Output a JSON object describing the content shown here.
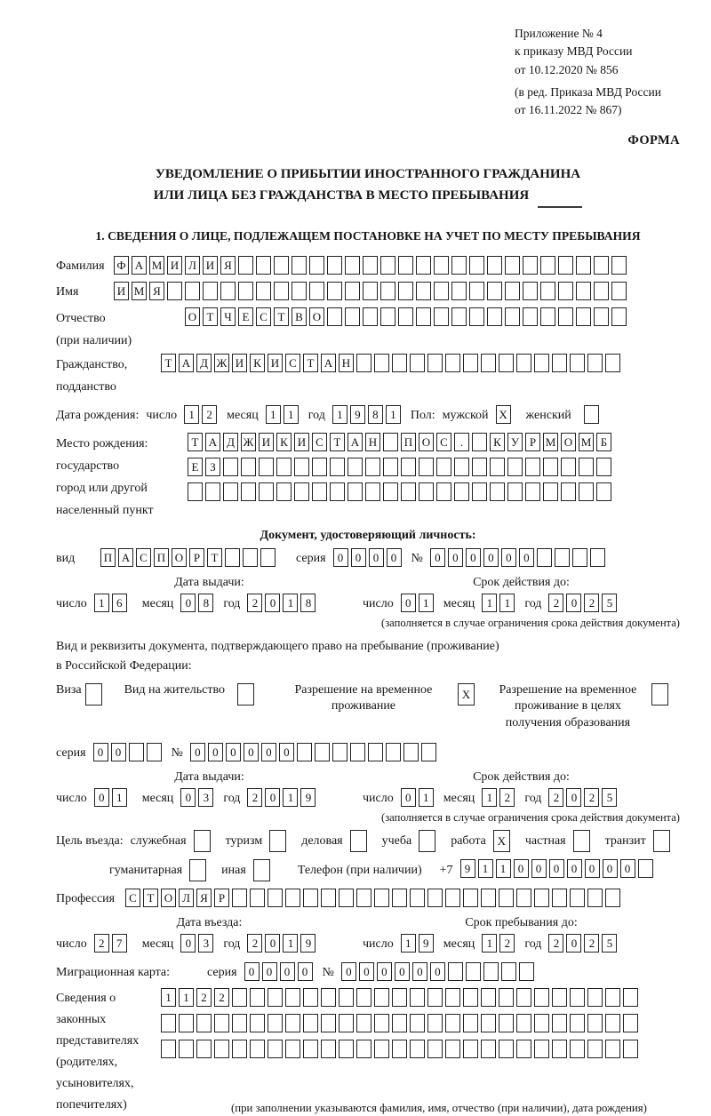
{
  "doc": {
    "annex": [
      "Приложение № 4",
      "к приказу МВД России",
      "от 10.12.2020 № 856"
    ],
    "annex_note": [
      "(в ред. Приказа МВД России",
      "от 16.11.2022 № 867)"
    ],
    "forma": "ФОРМА",
    "title1": "УВЕДОМЛЕНИЕ О ПРИБЫТИИ ИНОСТРАННОГО ГРАЖДАНИНА",
    "title2": "ИЛИ ЛИЦА БЕЗ ГРАЖДАНСТВА В МЕСТО ПРЕБЫВАНИЯ",
    "section1_title": "1. СВЕДЕНИЯ О ЛИЦЕ, ПОДЛЕЖАЩЕМ ПОСТАНОВКЕ НА УЧЕТ ПО МЕСТУ ПРЕБЫВАНИЯ"
  },
  "person": {
    "surname": {
      "label": "Фамилия",
      "boxes": {
        "value": "ФАМИЛИЯ",
        "count": 29
      }
    },
    "name": {
      "label": "Имя",
      "boxes": {
        "value": "ИМЯ",
        "count": 29
      }
    },
    "patronymic": {
      "label1": "Отчество",
      "label2": "(при наличии)",
      "boxes": {
        "value": "ОТЧЕСТВО",
        "count": 25
      }
    },
    "citizenship": {
      "label1": "Гражданство,",
      "label2": "подданство",
      "boxes": {
        "value": "ТАДЖИКИСТАН",
        "count": 26
      }
    },
    "birth": {
      "label": "Дата рождения:",
      "day_label": "число",
      "day": {
        "value": "12",
        "count": 2
      },
      "month_label": "месяц",
      "month": {
        "value": "11",
        "count": 2
      },
      "year_label": "год",
      "year": {
        "value": "1981",
        "count": 4
      },
      "sex_label": "Пол:",
      "male_label": "мужской",
      "male": {
        "value": "X",
        "count": 1
      },
      "female_label": "женский",
      "female": {
        "value": "",
        "count": 1
      }
    },
    "birthplace": {
      "label1": "Место рождения:",
      "label2": "государство",
      "label3": "город или другой",
      "label4": "населенный пункт",
      "row1": {
        "value": "ТАДЖИКИСТАН ПОС. КУРМОМБ",
        "count": 24
      },
      "row2": {
        "value": "ЕЗ",
        "count": 24
      },
      "row3": {
        "value": "",
        "count": 24
      }
    }
  },
  "identity_doc": {
    "heading": "Документ, удостоверяющий личность:",
    "kind_label": "вид",
    "kind": {
      "value": "ПАСПОРТ",
      "count": 10
    },
    "series_label": "серия",
    "series": {
      "value": "0000",
      "count": 4
    },
    "number_label": "№",
    "number": {
      "value": "000000",
      "count": 10
    },
    "issue": {
      "heading": "Дата выдачи:",
      "day_label": "число",
      "day": {
        "value": "16",
        "count": 2
      },
      "month_label": "месяц",
      "month": {
        "value": "08",
        "count": 2
      },
      "year_label": "год",
      "year": {
        "value": "2018",
        "count": 4
      }
    },
    "valid": {
      "heading": "Срок действия до:",
      "day_label": "число",
      "day": {
        "value": "01",
        "count": 2
      },
      "month_label": "месяц",
      "month": {
        "value": "11",
        "count": 2
      },
      "year_label": "год",
      "year": {
        "value": "2025",
        "count": 4
      }
    },
    "valid_note": "(заполняется в случае ограничения срока действия документа)"
  },
  "residence_doc": {
    "intro1": "Вид и реквизиты документа, подтверждающего право на пребывание (проживание)",
    "intro2": "в Российской Федерации:",
    "options": [
      {
        "label": "Виза",
        "box": {
          "value": "",
          "count": 1
        }
      },
      {
        "label": "Вид на жительство",
        "box": {
          "value": "",
          "count": 1
        }
      },
      {
        "label": "Разрешение на временное проживание",
        "box": {
          "value": "X",
          "count": 1
        }
      },
      {
        "label": "Разрешение на временное проживание в целях получения образования",
        "box": {
          "value": "",
          "count": 1
        }
      }
    ],
    "series_label": "серия",
    "series": {
      "value": "00",
      "count": 4
    },
    "number_label": "№",
    "number": {
      "value": "000000",
      "count": 14
    },
    "issue": {
      "heading": "Дата выдачи:",
      "day_label": "число",
      "day": {
        "value": "01",
        "count": 2
      },
      "month_label": "месяц",
      "month": {
        "value": "03",
        "count": 2
      },
      "year_label": "год",
      "year": {
        "value": "2019",
        "count": 4
      }
    },
    "valid": {
      "heading": "Срок действия до:",
      "day_label": "число",
      "day": {
        "value": "01",
        "count": 2
      },
      "month_label": "месяц",
      "month": {
        "value": "12",
        "count": 2
      },
      "year_label": "год",
      "year": {
        "value": "2025",
        "count": 4
      }
    },
    "valid_note": "(заполняется в случае ограничения срока действия документа)"
  },
  "visit": {
    "purpose_label": "Цель въезда:",
    "purposes": [
      {
        "label": "служебная",
        "box": {
          "value": "",
          "count": 1
        }
      },
      {
        "label": "туризм",
        "box": {
          "value": "",
          "count": 1
        }
      },
      {
        "label": "деловая",
        "box": {
          "value": "",
          "count": 1
        }
      },
      {
        "label": "учеба",
        "box": {
          "value": "",
          "count": 1
        }
      },
      {
        "label": "работа",
        "box": {
          "value": "X",
          "count": 1
        }
      },
      {
        "label": "частная",
        "box": {
          "value": "",
          "count": 1
        }
      },
      {
        "label": "транзит",
        "box": {
          "value": "",
          "count": 1
        }
      },
      {
        "label": "гуманитарная",
        "box": {
          "value": "",
          "count": 1
        }
      },
      {
        "label": "иная",
        "box": {
          "value": "",
          "count": 1
        }
      }
    ],
    "phone_label": "Телефон (при наличии)",
    "phone_prefix": "+7",
    "phone": {
      "value": "9110000000",
      "count": 11
    },
    "profession_label": "Профессия",
    "profession": {
      "value": "СТОЛЯР",
      "count": 28
    },
    "entry": {
      "heading": "Дата въезда:",
      "day_label": "число",
      "day": {
        "value": "27",
        "count": 2
      },
      "month_label": "месяц",
      "month": {
        "value": "03",
        "count": 2
      },
      "year_label": "год",
      "year": {
        "value": "2019",
        "count": 4
      }
    },
    "stay": {
      "heading": "Срок пребывания до:",
      "day_label": "число",
      "day": {
        "value": "19",
        "count": 2
      },
      "month_label": "месяц",
      "month": {
        "value": "12",
        "count": 2
      },
      "year_label": "год",
      "year": {
        "value": "2025",
        "count": 4
      }
    }
  },
  "migration_card": {
    "label": "Миграционная карта:",
    "series_label": "серия",
    "series": {
      "value": "0000",
      "count": 4
    },
    "number_label": "№",
    "number": {
      "value": "000000",
      "count": 11
    }
  },
  "representatives": {
    "label1": "Сведения о",
    "label2": "законных",
    "label3": "представителях",
    "label4": "(родителях,",
    "label5": "усыновителях,",
    "label6": "попечителях)",
    "row1": {
      "value": "1122",
      "count": 27
    },
    "row2": {
      "value": "",
      "count": 27
    },
    "row3": {
      "value": "",
      "count": 27
    },
    "note": "(при заполнении указываются фамилия, имя, отчество (при наличии), дата рождения)"
  }
}
